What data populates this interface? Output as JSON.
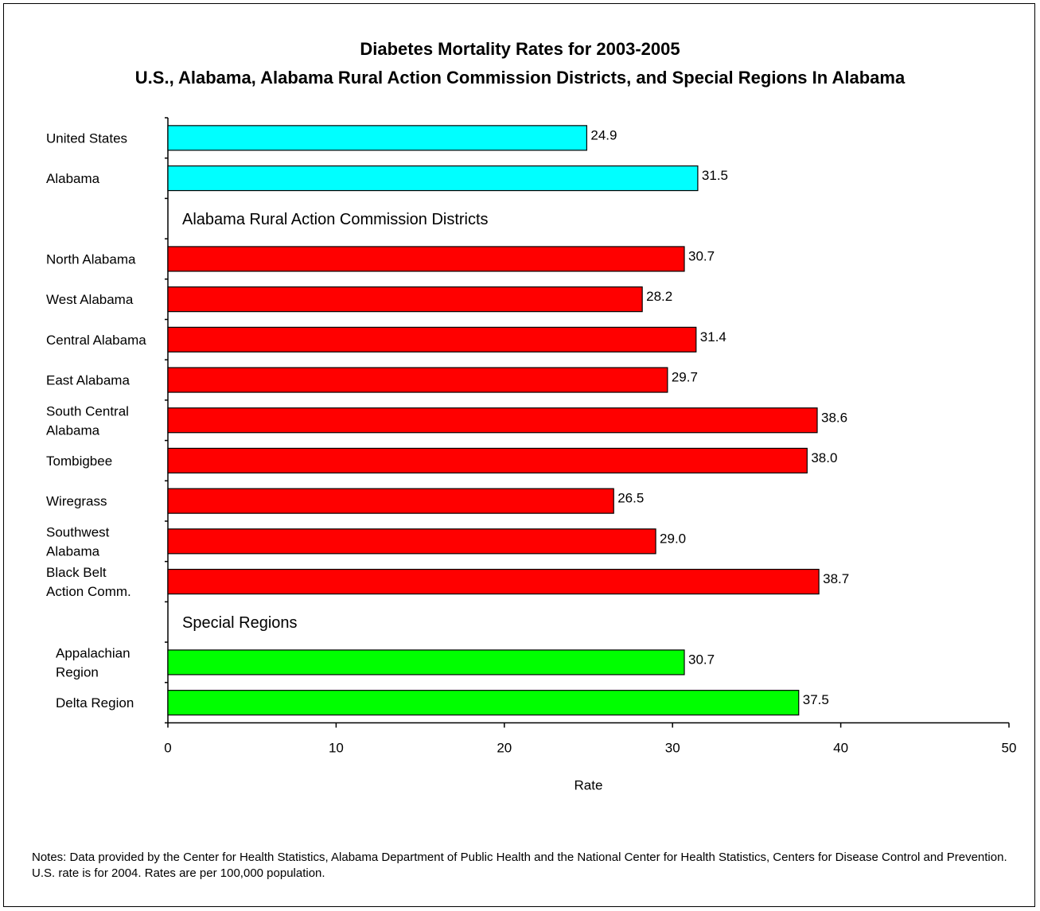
{
  "title_line1": "Diabetes Mortality Rates for 2003-2005",
  "title_line2": "U.S., Alabama, Alabama Rural Action Commission Districts, and Special Regions In Alabama",
  "notes": "Notes: Data provided by the Center for Health Statistics,  Alabama Department of Public Health and the  National Center for Health Statistics, Centers for Disease Control and Prevention.  U.S. rate is for 2004.  Rates are per 100,000 population.",
  "chart_data": {
    "type": "bar",
    "orientation": "horizontal",
    "title": "Diabetes Mortality Rates for 2003-2005 U.S., Alabama, Alabama Rural Action Commission Districts, and Special Regions In Alabama",
    "xlabel": "Rate",
    "ylabel": "",
    "xlim": [
      0,
      50
    ],
    "xticks": [
      "0",
      "10",
      "20",
      "30",
      "40",
      "50"
    ],
    "grid": false,
    "rows": [
      {
        "kind": "bar",
        "label": [
          "United States"
        ],
        "value": 24.9,
        "value_label": "24.9",
        "color": "#00FFFF"
      },
      {
        "kind": "bar",
        "label": [
          "Alabama"
        ],
        "value": 31.5,
        "value_label": "31.5",
        "color": "#00FFFF"
      },
      {
        "kind": "section",
        "label": "Alabama Rural Action Commission Districts"
      },
      {
        "kind": "bar",
        "label": [
          "North Alabama"
        ],
        "value": 30.7,
        "value_label": "30.7",
        "color": "#FF0000"
      },
      {
        "kind": "bar",
        "label": [
          "West Alabama"
        ],
        "value": 28.2,
        "value_label": "28.2",
        "color": "#FF0000"
      },
      {
        "kind": "bar",
        "label": [
          "Central Alabama"
        ],
        "value": 31.4,
        "value_label": "31.4",
        "color": "#FF0000"
      },
      {
        "kind": "bar",
        "label": [
          "East Alabama"
        ],
        "value": 29.7,
        "value_label": "29.7",
        "color": "#FF0000"
      },
      {
        "kind": "bar",
        "label": [
          "South Central",
          "Alabama"
        ],
        "value": 38.6,
        "value_label": "38.6",
        "color": "#FF0000"
      },
      {
        "kind": "bar",
        "label": [
          "Tombigbee"
        ],
        "value": 38.0,
        "value_label": "38.0",
        "color": "#FF0000"
      },
      {
        "kind": "bar",
        "label": [
          "Wiregrass"
        ],
        "value": 26.5,
        "value_label": "26.5",
        "color": "#FF0000"
      },
      {
        "kind": "bar",
        "label": [
          "Southwest",
          "Alabama"
        ],
        "value": 29.0,
        "value_label": "29.0",
        "color": "#FF0000"
      },
      {
        "kind": "bar",
        "label": [
          "Black Belt",
          "Action Comm."
        ],
        "value": 38.7,
        "value_label": "38.7",
        "color": "#FF0000"
      },
      {
        "kind": "section",
        "label": "Special Regions"
      },
      {
        "kind": "bar",
        "label": [
          "Appalachian",
          "Region"
        ],
        "value": 30.7,
        "value_label": "30.7",
        "color": "#00FF00"
      },
      {
        "kind": "bar",
        "label": [
          "Delta Region"
        ],
        "value": 37.5,
        "value_label": "37.5",
        "color": "#00FF00"
      }
    ]
  }
}
